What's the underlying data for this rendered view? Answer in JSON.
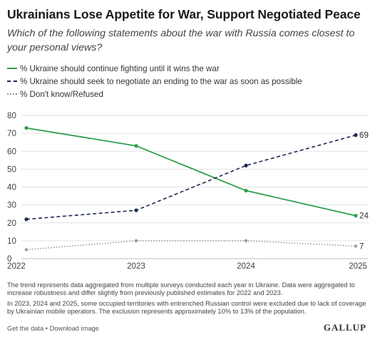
{
  "header": {
    "title": "Ukrainians Lose Appetite for War, Support Negotiated Peace",
    "subtitle": "Which of the following statements about the war with Russia comes closest to your personal views?"
  },
  "chart_data": {
    "type": "line",
    "x": [
      "2022",
      "2023",
      "2024",
      "2025"
    ],
    "ylim": [
      0,
      80
    ],
    "yticks": [
      0,
      10,
      20,
      30,
      40,
      50,
      60,
      70,
      80
    ],
    "grid": true,
    "legend_position": "top",
    "series": [
      {
        "name": "% Ukraine should continue fighting until it wins the war",
        "values": [
          73,
          63,
          38,
          24
        ],
        "end_label": "24",
        "color": "#2e9e4f",
        "style": "solid"
      },
      {
        "name": "% Ukraine should seek to negotiate an ending to the war as soon as possible",
        "values": [
          22,
          27,
          52,
          69
        ],
        "end_label": "69",
        "color": "#1b2a52",
        "style": "dashed"
      },
      {
        "name": "% Don't know/Refused",
        "values": [
          5,
          10,
          10,
          7
        ],
        "end_label": "7",
        "color": "#9a9a9a",
        "style": "dotted"
      }
    ]
  },
  "notes": {
    "note1": "The trend represents data aggregated from multiple surveys conducted each year in Ukraine. Data were aggregated to increase robustness and differ slightly from previously published estimates for 2022 and 2023.",
    "note2": "In 2023, 2024 and 2025, some occupied territories with entrenched Russian control were excluded due to lack of coverage by Ukrainian mobile operators. The exclusion represents approximately 10% to 13% of the population."
  },
  "footer": {
    "get_data": "Get the data",
    "separator": " • ",
    "download": "Download image",
    "logo": "GALLUP"
  }
}
